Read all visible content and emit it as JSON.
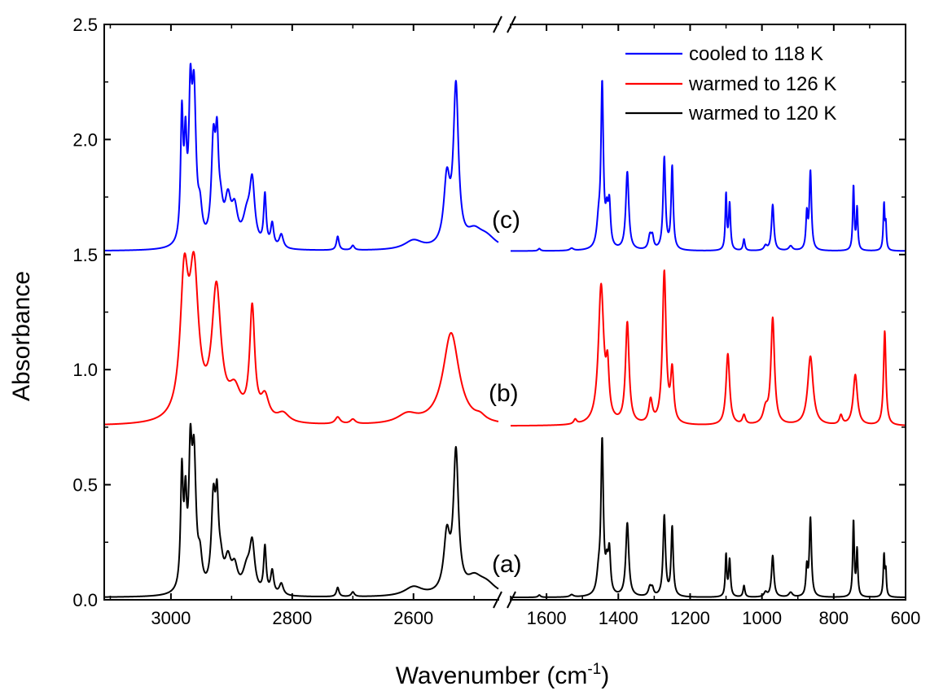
{
  "chart_data": {
    "type": "line",
    "xlabel": "Wavenumber (cm",
    "xlabel_sup": "-1",
    "xlabel_end": ")",
    "ylabel": "Absorbance",
    "ylim": [
      0,
      2.5
    ],
    "y_ticks": [
      "0.0",
      "0.5",
      "1.0",
      "1.5",
      "2.0",
      "2.5"
    ],
    "x_axis_broken": true,
    "x_segments": [
      {
        "range": [
          3110,
          2460
        ],
        "ticks": [
          3000,
          2800,
          2600
        ]
      },
      {
        "range": [
          1700,
          600
        ],
        "ticks": [
          1600,
          1400,
          1200,
          1000,
          800,
          600
        ]
      }
    ],
    "legend_placement": "top-right",
    "series": [
      {
        "name": "cooled to 118 K",
        "color": "#0000ff",
        "label": "(c)",
        "baseline": 1.515,
        "peaks_high": [
          [
            2982,
            0.54,
            2.5
          ],
          [
            2976,
            0.38,
            2.5
          ],
          [
            2968,
            0.55,
            3
          ],
          [
            2962,
            0.62,
            4
          ],
          [
            2952,
            0.12,
            4
          ],
          [
            2930,
            0.42,
            4
          ],
          [
            2924,
            0.36,
            3
          ],
          [
            2918,
            0.12,
            5
          ],
          [
            2906,
            0.18,
            6
          ],
          [
            2895,
            0.14,
            6
          ],
          [
            2875,
            0.12,
            8
          ],
          [
            2866,
            0.26,
            5
          ],
          [
            2845,
            0.22,
            2.5
          ],
          [
            2833,
            0.1,
            3
          ],
          [
            2818,
            0.06,
            4
          ],
          [
            2725,
            0.06,
            2.5
          ],
          [
            2700,
            0.02,
            3
          ],
          [
            2600,
            0.04,
            18
          ],
          [
            2545,
            0.28,
            6
          ],
          [
            2530,
            0.68,
            5
          ],
          [
            2500,
            0.06,
            15
          ],
          [
            2480,
            0.05,
            20
          ]
        ],
        "peaks_low": [
          [
            1620,
            0.01,
            4
          ],
          [
            1530,
            0.01,
            6
          ],
          [
            1455,
            0.1,
            6
          ],
          [
            1445,
            0.7,
            4
          ],
          [
            1432,
            0.12,
            4
          ],
          [
            1425,
            0.18,
            4
          ],
          [
            1375,
            0.34,
            5
          ],
          [
            1312,
            0.06,
            5
          ],
          [
            1305,
            0.05,
            4
          ],
          [
            1272,
            0.4,
            4
          ],
          [
            1250,
            0.36,
            3.5
          ],
          [
            1100,
            0.24,
            2.5
          ],
          [
            1090,
            0.2,
            3
          ],
          [
            1050,
            0.05,
            3
          ],
          [
            990,
            0.02,
            5
          ],
          [
            970,
            0.2,
            4
          ],
          [
            920,
            0.02,
            6
          ],
          [
            875,
            0.15,
            3
          ],
          [
            865,
            0.34,
            3.5
          ],
          [
            745,
            0.28,
            2.5
          ],
          [
            735,
            0.18,
            2.5
          ],
          [
            660,
            0.2,
            2.5
          ],
          [
            655,
            0.1,
            2
          ]
        ]
      },
      {
        "name": "warmed to 126 K",
        "color": "#ff0000",
        "label": "(b)",
        "baseline": 0.755,
        "peaks_high": [
          [
            2978,
            0.58,
            8
          ],
          [
            2962,
            0.6,
            9
          ],
          [
            2925,
            0.56,
            9
          ],
          [
            2895,
            0.12,
            12
          ],
          [
            2866,
            0.48,
            5
          ],
          [
            2845,
            0.1,
            8
          ],
          [
            2815,
            0.04,
            12
          ],
          [
            2725,
            0.03,
            5
          ],
          [
            2700,
            0.02,
            5
          ],
          [
            2610,
            0.04,
            20
          ],
          [
            2538,
            0.4,
            16
          ],
          [
            2490,
            0.02,
            10
          ]
        ],
        "peaks_low": [
          [
            1520,
            0.02,
            5
          ],
          [
            1448,
            0.6,
            9
          ],
          [
            1430,
            0.2,
            5
          ],
          [
            1375,
            0.44,
            6
          ],
          [
            1310,
            0.1,
            6
          ],
          [
            1272,
            0.66,
            6
          ],
          [
            1250,
            0.22,
            5
          ],
          [
            1095,
            0.31,
            6
          ],
          [
            1050,
            0.04,
            5
          ],
          [
            990,
            0.06,
            8
          ],
          [
            970,
            0.46,
            6
          ],
          [
            865,
            0.3,
            9
          ],
          [
            780,
            0.04,
            5
          ],
          [
            740,
            0.22,
            7
          ],
          [
            658,
            0.41,
            4
          ]
        ]
      },
      {
        "name": "warmed to 120 K",
        "color": "#000000",
        "label": "(a)",
        "baseline": 0.01,
        "peaks_high": [
          [
            2982,
            0.5,
            2.5
          ],
          [
            2976,
            0.34,
            2.5
          ],
          [
            2968,
            0.52,
            3
          ],
          [
            2962,
            0.55,
            4
          ],
          [
            2952,
            0.12,
            4
          ],
          [
            2930,
            0.38,
            4
          ],
          [
            2924,
            0.32,
            3
          ],
          [
            2918,
            0.1,
            5
          ],
          [
            2906,
            0.13,
            6
          ],
          [
            2895,
            0.1,
            6
          ],
          [
            2875,
            0.1,
            8
          ],
          [
            2866,
            0.2,
            5
          ],
          [
            2845,
            0.2,
            2.5
          ],
          [
            2833,
            0.1,
            3
          ],
          [
            2818,
            0.05,
            4
          ],
          [
            2725,
            0.04,
            2.5
          ],
          [
            2700,
            0.02,
            3
          ],
          [
            2600,
            0.04,
            18
          ],
          [
            2545,
            0.24,
            6
          ],
          [
            2530,
            0.6,
            5
          ],
          [
            2500,
            0.06,
            15
          ],
          [
            2480,
            0.05,
            20
          ]
        ],
        "peaks_low": [
          [
            1620,
            0.01,
            4
          ],
          [
            1530,
            0.01,
            6
          ],
          [
            1455,
            0.08,
            6
          ],
          [
            1445,
            0.66,
            4
          ],
          [
            1432,
            0.1,
            4
          ],
          [
            1425,
            0.18,
            4
          ],
          [
            1375,
            0.32,
            5
          ],
          [
            1312,
            0.04,
            5
          ],
          [
            1305,
            0.03,
            4
          ],
          [
            1272,
            0.35,
            4
          ],
          [
            1250,
            0.3,
            3.5
          ],
          [
            1100,
            0.18,
            2.5
          ],
          [
            1090,
            0.16,
            3
          ],
          [
            1050,
            0.05,
            3
          ],
          [
            990,
            0.02,
            5
          ],
          [
            970,
            0.18,
            4
          ],
          [
            920,
            0.02,
            6
          ],
          [
            875,
            0.12,
            3
          ],
          [
            865,
            0.34,
            3.5
          ],
          [
            745,
            0.33,
            2.5
          ],
          [
            735,
            0.2,
            2.5
          ],
          [
            660,
            0.18,
            2.5
          ],
          [
            655,
            0.1,
            2
          ]
        ]
      }
    ]
  }
}
